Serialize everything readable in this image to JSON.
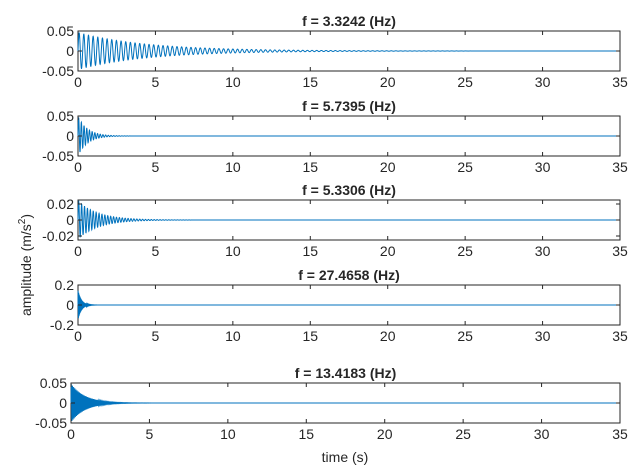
{
  "figure": {
    "ylabel": "amplitude (m/s",
    "ylabel_sup": "2",
    "ylabel_end": ")",
    "xlabel": "time (s)"
  },
  "colors": {
    "signal": "#0072BD",
    "axes": "#262626"
  },
  "chart_data": [
    {
      "type": "line",
      "title": "f =  3.3242 (Hz)",
      "xlim": [
        0,
        35
      ],
      "ylim": [
        -0.05,
        0.05
      ],
      "xticks": [
        0,
        5,
        10,
        15,
        20,
        25,
        30,
        35
      ],
      "yticks": [
        -0.05,
        0,
        0.05
      ],
      "ytick_labels": [
        "-0.05",
        "0",
        "0.05"
      ],
      "series": [
        {
          "frequency_hz": 3.3242,
          "initial_amplitude": 0.046,
          "decay_time_s": 4.5
        }
      ]
    },
    {
      "type": "line",
      "title": "f =  5.7395 (Hz)",
      "xlim": [
        0,
        35
      ],
      "ylim": [
        -0.05,
        0.05
      ],
      "xticks": [
        0,
        5,
        10,
        15,
        20,
        25,
        30,
        35
      ],
      "yticks": [
        -0.05,
        0,
        0.05
      ],
      "ytick_labels": [
        "-0.05",
        "0",
        "0.05"
      ],
      "series": [
        {
          "frequency_hz": 5.7395,
          "initial_amplitude": 0.05,
          "decay_time_s": 0.6
        }
      ]
    },
    {
      "type": "line",
      "title": "f =  5.3306 (Hz)",
      "xlim": [
        0,
        35
      ],
      "ylim": [
        -0.025,
        0.025
      ],
      "xticks": [
        0,
        5,
        10,
        15,
        20,
        25,
        30,
        35
      ],
      "yticks": [
        -0.02,
        0,
        0.02
      ],
      "ytick_labels": [
        "-0.02",
        "0",
        "0.02"
      ],
      "series": [
        {
          "frequency_hz": 5.3306,
          "initial_amplitude": 0.024,
          "decay_time_s": 1.3
        }
      ]
    },
    {
      "type": "line",
      "title": "f =  27.4658 (Hz)",
      "xlim": [
        0,
        35
      ],
      "ylim": [
        -0.2,
        0.2
      ],
      "xticks": [
        0,
        5,
        10,
        15,
        20,
        25,
        30,
        35
      ],
      "yticks": [
        -0.2,
        0,
        0.2
      ],
      "ytick_labels": [
        "-0.2",
        "0",
        "0.2"
      ],
      "series": [
        {
          "frequency_hz": 27.4658,
          "initial_amplitude": 0.15,
          "decay_time_s": 0.22
        }
      ]
    },
    {
      "type": "line",
      "title": "f =  13.4183 (Hz)",
      "xlim": [
        0,
        35
      ],
      "ylim": [
        -0.05,
        0.05
      ],
      "xticks": [
        0,
        5,
        10,
        15,
        20,
        25,
        30,
        35
      ],
      "yticks": [
        -0.05,
        0,
        0.05
      ],
      "ytick_labels": [
        "-0.05",
        "0",
        "0.05"
      ],
      "series": [
        {
          "frequency_hz": 13.4183,
          "initial_amplitude": 0.048,
          "decay_time_s": 0.9
        }
      ]
    }
  ]
}
